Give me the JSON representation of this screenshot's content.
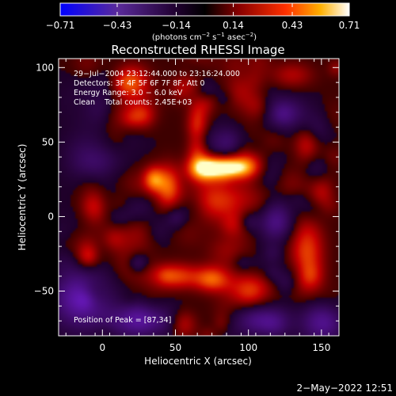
{
  "chart_data": {
    "type": "heatmap",
    "title": "Reconstructed RHESSI Image",
    "xlabel": "Heliocentric X (arcsec)",
    "ylabel": "Heliocentric Y (arcsec)",
    "xlim": [
      -30,
      162
    ],
    "ylim": [
      -80,
      106
    ],
    "x_ticks": [
      0,
      50,
      100,
      150
    ],
    "y_ticks": [
      -50,
      0,
      50,
      100
    ],
    "x_tick_labels": [
      "0",
      "50",
      "100",
      "150"
    ],
    "y_tick_labels": [
      "−50",
      "0",
      "50",
      "100"
    ],
    "colorbar": {
      "min": -0.71,
      "max": 0.71,
      "ticks": [
        -0.71,
        -0.43,
        -0.14,
        0.14,
        0.43,
        0.71
      ],
      "tick_labels": [
        "−0.71",
        "−0.43",
        "−0.14",
        "0.14",
        "0.43",
        "0.71"
      ],
      "units_prefix": "(photons cm",
      "units_exp1": "−2",
      "units_mid1": " s",
      "units_exp2": "−1",
      "units_mid2": " asec",
      "units_exp3": "−2",
      "units_suffix": ")"
    },
    "annotations": {
      "line1": "29−Jul−2004 23:12:44.000 to 23:16:24.000",
      "line2": "Detectors: 3F 4F 5F 6F 7F 8F, Att 0",
      "line3": "Energy Range: 3.0 − 6.0 keV",
      "line4": "Clean    Total counts: 2.45E+03",
      "peak": "Position of Peak = [87,34]"
    },
    "peak": {
      "x": 87,
      "y": 34,
      "value": 0.71
    },
    "features": [
      {
        "x": 87,
        "y": 33,
        "value": 0.71,
        "sx": 12,
        "sy": 5
      },
      {
        "x": 70,
        "y": 32,
        "value": 0.55,
        "sx": 8,
        "sy": 6
      },
      {
        "x": 45,
        "y": 20,
        "value": 0.42,
        "sx": 6,
        "sy": 10
      },
      {
        "x": 35,
        "y": 25,
        "value": 0.45,
        "sx": 5,
        "sy": 6
      },
      {
        "x": 65,
        "y": 55,
        "value": 0.4,
        "sx": 5,
        "sy": 14
      },
      {
        "x": 80,
        "y": 10,
        "value": 0.32,
        "sx": 14,
        "sy": 10
      },
      {
        "x": 100,
        "y": 40,
        "value": 0.28,
        "sx": 8,
        "sy": 10
      },
      {
        "x": 50,
        "y": -40,
        "value": 0.38,
        "sx": 12,
        "sy": 6
      },
      {
        "x": 75,
        "y": -42,
        "value": 0.4,
        "sx": 8,
        "sy": 6
      },
      {
        "x": 100,
        "y": -50,
        "value": 0.3,
        "sx": 10,
        "sy": 8
      },
      {
        "x": 140,
        "y": -25,
        "value": 0.38,
        "sx": 8,
        "sy": 18
      },
      {
        "x": 140,
        "y": 45,
        "value": 0.32,
        "sx": 6,
        "sy": 12
      },
      {
        "x": 150,
        "y": 15,
        "value": 0.25,
        "sx": 6,
        "sy": 8
      },
      {
        "x": 20,
        "y": 90,
        "value": 0.35,
        "sx": 8,
        "sy": 8
      },
      {
        "x": 60,
        "y": 90,
        "value": 0.28,
        "sx": 8,
        "sy": 6
      },
      {
        "x": 95,
        "y": 85,
        "value": 0.22,
        "sx": 8,
        "sy": 8
      },
      {
        "x": 130,
        "y": 95,
        "value": 0.2,
        "sx": 10,
        "sy": 6
      },
      {
        "x": -5,
        "y": 5,
        "value": 0.18,
        "sx": 6,
        "sy": 8
      },
      {
        "x": -10,
        "y": -25,
        "value": 0.2,
        "sx": 6,
        "sy": 8
      },
      {
        "x": -5,
        "y": 40,
        "value": -0.35,
        "sx": 12,
        "sy": 12
      },
      {
        "x": -15,
        "y": -55,
        "value": -0.45,
        "sx": 14,
        "sy": 14
      },
      {
        "x": 30,
        "y": -70,
        "value": -0.35,
        "sx": 16,
        "sy": 8
      },
      {
        "x": 110,
        "y": -70,
        "value": -0.45,
        "sx": 12,
        "sy": 8
      },
      {
        "x": 150,
        "y": -70,
        "value": -0.4,
        "sx": 10,
        "sy": 10
      },
      {
        "x": 120,
        "y": -5,
        "value": -0.25,
        "sx": 8,
        "sy": 10
      },
      {
        "x": 125,
        "y": 70,
        "value": -0.3,
        "sx": 10,
        "sy": 8
      },
      {
        "x": 115,
        "y": 30,
        "value": -0.15,
        "sx": 8,
        "sy": 8
      }
    ],
    "colors": {
      "neg_min": "#1a00ff",
      "neg_mid": "#6a1aa0",
      "zero": "#000000",
      "pos_low": "#8a0000",
      "pos_mid": "#ff4000",
      "pos_high": "#ffb000",
      "pos_max": "#ffffe0"
    }
  },
  "footer": {
    "timestamp": "2−May−2022 12:51"
  }
}
